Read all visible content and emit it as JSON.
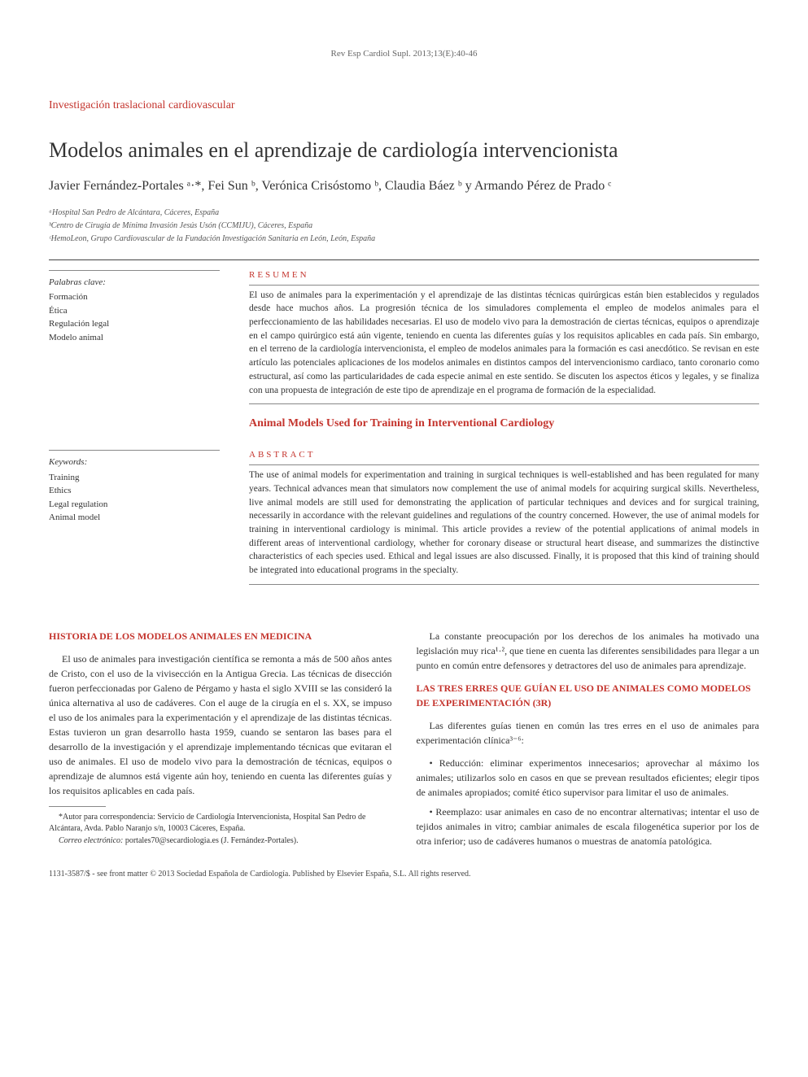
{
  "colors": {
    "accent": "#c4342d",
    "text": "#333333",
    "muted": "#666666",
    "rule": "#888888",
    "background": "#ffffff"
  },
  "typography": {
    "body_family": "Georgia, Times New Roman, serif",
    "title_size_pt": 26,
    "authors_size_pt": 16,
    "abstract_size_pt": 11.5,
    "body_size_pt": 12,
    "footnote_size_pt": 10
  },
  "citation": "Rev Esp Cardiol Supl. 2013;13(E):40-46",
  "section_label": "Investigación traslacional cardiovascular",
  "title": "Modelos animales en el aprendizaje de cardiología intervencionista",
  "authors_html": "Javier Fernández-Portales ᵃ·*, Fei Sun ᵇ, Verónica Crisóstomo ᵇ, Claudia Báez ᵇ y Armando Pérez de Prado ᶜ",
  "affiliations": [
    "ᵃHospital San Pedro de Alcántara, Cáceres, España",
    "ᵇCentro de Cirugía de Mínima Invasión Jesús Usón (CCMIJU), Cáceres, España",
    "ᶜHemoLeon, Grupo Cardiovascular de la Fundación Investigación Sanitaria en León, León, España"
  ],
  "keywords_es": {
    "title": "Palabras clave:",
    "items": [
      "Formación",
      "Ética",
      "Regulación legal",
      "Modelo animal"
    ]
  },
  "keywords_en": {
    "title": "Keywords:",
    "items": [
      "Training",
      "Ethics",
      "Legal regulation",
      "Animal model"
    ]
  },
  "resumen": {
    "heading": "RESUMEN",
    "text": "El uso de animales para la experimentación y el aprendizaje de las distintas técnicas quirúrgicas están bien establecidos y regulados desde hace muchos años. La progresión técnica de los simuladores complementa el empleo de modelos animales para el perfeccionamiento de las habilidades necesarias. El uso de modelo vivo para la demostración de ciertas técnicas, equipos o aprendizaje en el campo quirúrgico está aún vigente, teniendo en cuenta las diferentes guías y los requisitos aplicables en cada país. Sin embargo, en el terreno de la cardiología intervencionista, el empleo de modelos animales para la formación es casi anecdótico. Se revisan en este artículo las potenciales aplicaciones de los modelos animales en distintos campos del intervencionismo cardiaco, tanto coronario como estructural, así como las particularidades de cada especie animal en este sentido. Se discuten los aspectos éticos y legales, y se finaliza con una propuesta de integración de este tipo de aprendizaje en el programa de formación de la especialidad."
  },
  "english_title": "Animal Models Used for Training in Interventional Cardiology",
  "abstract": {
    "heading": "ABSTRACT",
    "text": "The use of animal models for experimentation and training in surgical techniques is well-established and has been regulated for many years. Technical advances mean that simulators now complement the use of animal models for acquiring surgical skills. Nevertheless, live animal models are still used for demonstrating the application of particular techniques and devices and for surgical training, necessarily in accordance with the relevant guidelines and regulations of the country concerned. However, the use of animal models for training in interventional cardiology is minimal. This article provides a review of the potential applications of animal models in different areas of interventional cardiology, whether for coronary disease or structural heart disease, and summarizes the distinctive characteristics of each species used. Ethical and legal issues are also discussed. Finally, it is proposed that this kind of training should be integrated into educational programs in the specialty."
  },
  "body": {
    "left": {
      "heading": "HISTORIA DE LOS MODELOS ANIMALES EN MEDICINA",
      "para1": "El uso de animales para investigación científica se remonta a más de 500 años antes de Cristo, con el uso de la vivisección en la Antigua Grecia. Las técnicas de disección fueron perfeccionadas por Galeno de Pérgamo y hasta el siglo XVIII se las consideró la única alternativa al uso de cadáveres. Con el auge de la cirugía en el s. XX, se impuso el uso de los animales para la experimentación y el aprendizaje de las distintas técnicas. Estas tuvieron un gran desarrollo hasta 1959, cuando se sentaron las bases para el desarrollo de la investigación y el aprendizaje implementando técnicas que evitaran el uso de animales. El uso de modelo vivo para la demostración de técnicas, equipos o aprendizaje de alumnos está vigente aún hoy, teniendo en cuenta las diferentes guías y los requisitos aplicables en cada país.",
      "footnote": "*Autor para correspondencia: Servicio de Cardiología Intervencionista, Hospital San Pedro de Alcántara, Avda. Pablo Naranjo s/n, 10003 Cáceres, España.",
      "email_label": "Correo electrónico:",
      "email_value": "portales70@secardiologia.es (J. Fernández-Portales)."
    },
    "right": {
      "para1": "La constante preocupación por los derechos de los animales ha motivado una legislación muy rica¹·², que tiene en cuenta las diferentes sensibilidades para llegar a un punto en común entre defensores y detractores del uso de animales para aprendizaje.",
      "heading": "LAS TRES ERRES QUE GUÍAN EL USO DE ANIMALES COMO MODELOS DE EXPERIMENTACIÓN (3R)",
      "para2": "Las diferentes guías tienen en común las tres erres en el uso de animales para experimentación clínica³⁻⁶:",
      "bullet1": "• Reducción: eliminar experimentos innecesarios; aprovechar al máximo los animales; utilizarlos solo en casos en que se prevean resultados eficientes; elegir tipos de animales apropiados; comité ético supervisor para limitar el uso de animales.",
      "bullet2": "• Reemplazo: usar animales en caso de no encontrar alternativas; intentar el uso de tejidos animales in vitro; cambiar animales de escala filogenética superior por los de otra inferior; uso de cadáveres humanos o muestras de anatomía patológica."
    }
  },
  "copyright": "1131-3587/$ - see front matter © 2013 Sociedad Española de Cardiología. Published by Elsevier España, S.L. All rights reserved."
}
